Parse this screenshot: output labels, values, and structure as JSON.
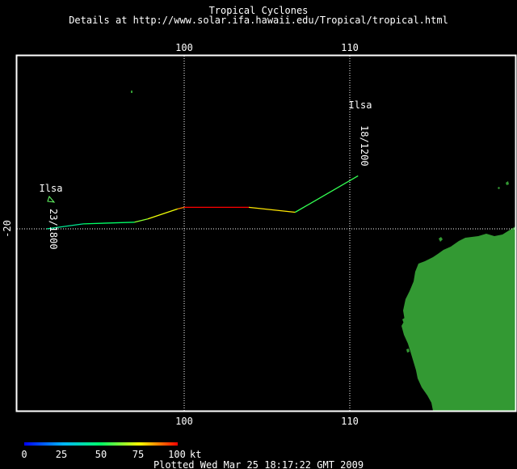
{
  "header": {
    "title": "Tropical Cyclones",
    "subtitle": "Details at http://www.solar.ifa.hawaii.edu/Tropical/tropical.html"
  },
  "map": {
    "lon_ticks": [
      {
        "value": 100,
        "label": "100"
      },
      {
        "value": 110,
        "label": "110"
      }
    ],
    "lat_ticks": [
      {
        "value": -20,
        "label": "-20"
      }
    ],
    "grid": true,
    "colors": {
      "background": "#000000",
      "land": "#339933",
      "frame": "#ffffff",
      "grid": "#ffffff"
    }
  },
  "storm": {
    "name_start": "Ilsa",
    "name_end": "Ilsa",
    "time_start": "18/1200",
    "time_end": "23/1800",
    "track": [
      {
        "lon": 110.5,
        "lat": -16.8,
        "kt": 55
      },
      {
        "lon": 106.7,
        "lat": -19.0,
        "kt": 55
      },
      {
        "lon": 103.9,
        "lat": -18.7,
        "kt": 100
      },
      {
        "lon": 100.0,
        "lat": -18.7,
        "kt": 100
      },
      {
        "lon": 99.6,
        "lat": -18.8,
        "kt": 75
      },
      {
        "lon": 97.8,
        "lat": -19.4,
        "kt": 72
      },
      {
        "lon": 97.0,
        "lat": -19.6,
        "kt": 55
      },
      {
        "lon": 93.9,
        "lat": -19.7,
        "kt": 45
      },
      {
        "lon": 91.7,
        "lat": -20.0,
        "kt": 40
      }
    ]
  },
  "legend": {
    "ticks": [
      "0",
      "25",
      "50",
      "75",
      "100"
    ],
    "unit": "kt",
    "stops": [
      "#0000ff",
      "#00b4ff",
      "#00ff66",
      "#ffff00",
      "#ff0000"
    ]
  },
  "footer": {
    "plotted": "Plotted Wed Mar 25 18:17:22 GMT 2009"
  }
}
